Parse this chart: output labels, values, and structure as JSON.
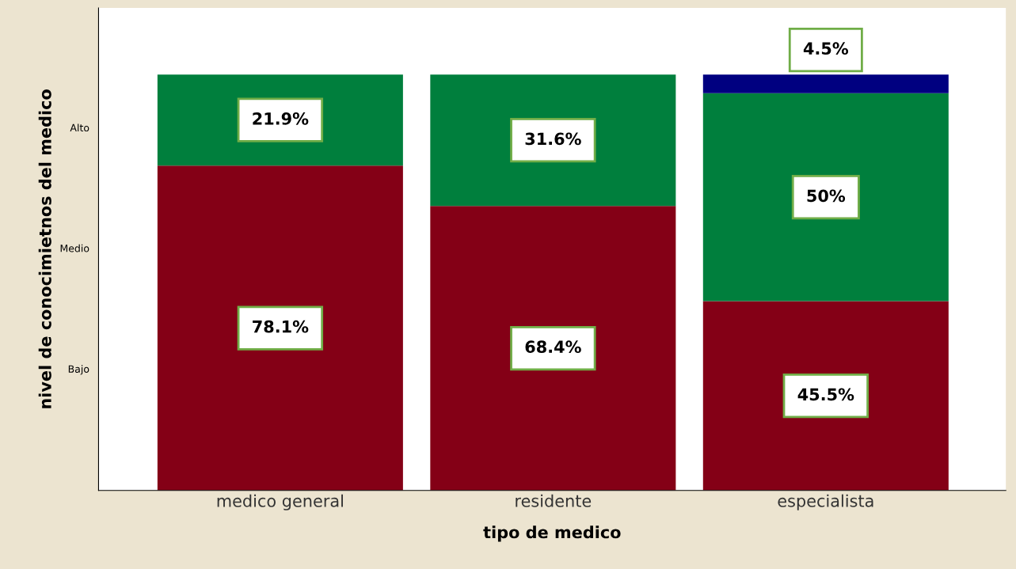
{
  "chart_data": {
    "type": "bar",
    "stacked": true,
    "xlabel": "tipo de medico",
    "ylabel": "nivel de conocimietnos del medico",
    "categories": [
      "medico general",
      "residente",
      "especialista"
    ],
    "series": [
      {
        "color": "#840016",
        "values": [
          78.1,
          68.4,
          45.5
        ],
        "value_labels": [
          "78.1%",
          "68.4%",
          "45.5%"
        ]
      },
      {
        "color": "#007f3d",
        "values": [
          21.9,
          31.6,
          50
        ],
        "value_labels": [
          "21.9%",
          "31.6%",
          "50%"
        ]
      },
      {
        "color": "#000080",
        "values": [
          null,
          null,
          4.5
        ],
        "value_labels": [
          null,
          null,
          "4.5%"
        ]
      }
    ],
    "annotations": [
      "Bajo",
      "Medio",
      "Alto"
    ],
    "legend": false
  }
}
